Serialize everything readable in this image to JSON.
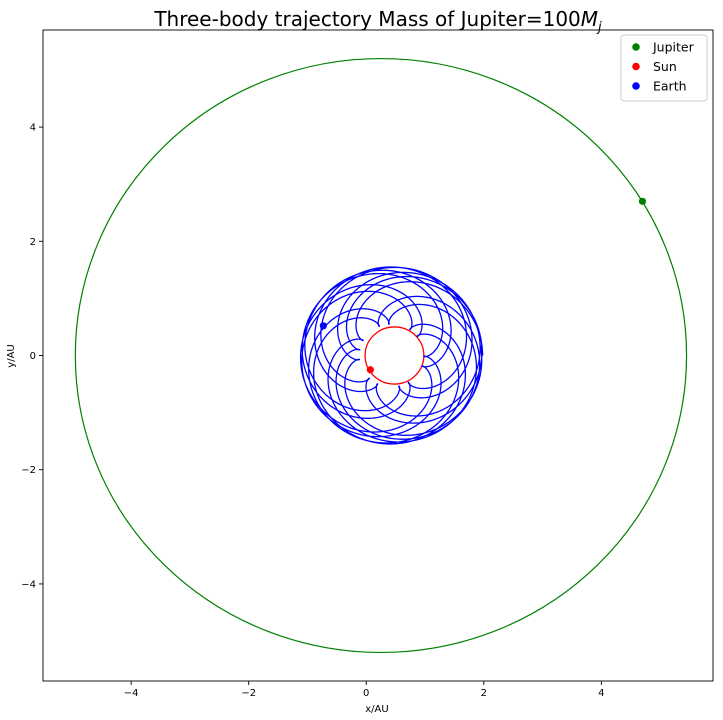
{
  "chart_data": {
    "type": "line",
    "title": "Three-body trajectory  Mass of Jupiter=100",
    "title_math": "M",
    "title_math_sub": "j",
    "xlabel": "x/AU",
    "ylabel": "y/AU",
    "xlim": [
      -5.5,
      5.9
    ],
    "ylim": [
      -5.7,
      5.7
    ],
    "xticks": [
      -4,
      -2,
      0,
      2,
      4
    ],
    "yticks": [
      -4,
      -2,
      0,
      2,
      4
    ],
    "xtick_labels": [
      "−4",
      "−2",
      "0",
      "2",
      "4"
    ],
    "ytick_labels": [
      "−4",
      "−2",
      "0",
      "2",
      "4"
    ],
    "grid": false,
    "legend_position": "top-right",
    "legend": [
      "Jupiter",
      "Sun",
      "Earth"
    ],
    "series": [
      {
        "name": "Jupiter",
        "color": "#008000",
        "orbit": {
          "kind": "ellipse",
          "center": [
            0.25,
            0.0
          ],
          "radius_x": 5.2,
          "radius_y": 5.2
        },
        "current_position": [
          4.7,
          2.7
        ]
      },
      {
        "name": "Sun",
        "color": "#ff0000",
        "orbit": {
          "kind": "circle",
          "center": [
            0.48,
            0.0
          ],
          "radius": 0.5
        },
        "current_position": [
          0.07,
          -0.25
        ]
      },
      {
        "name": "Earth",
        "color": "#0000ff",
        "orbit": {
          "kind": "rosette",
          "center": [
            0.43,
            0.0
          ],
          "radius_min": 0.55,
          "radius_max": 1.55
        },
        "current_position": [
          -0.73,
          0.52
        ]
      }
    ]
  }
}
